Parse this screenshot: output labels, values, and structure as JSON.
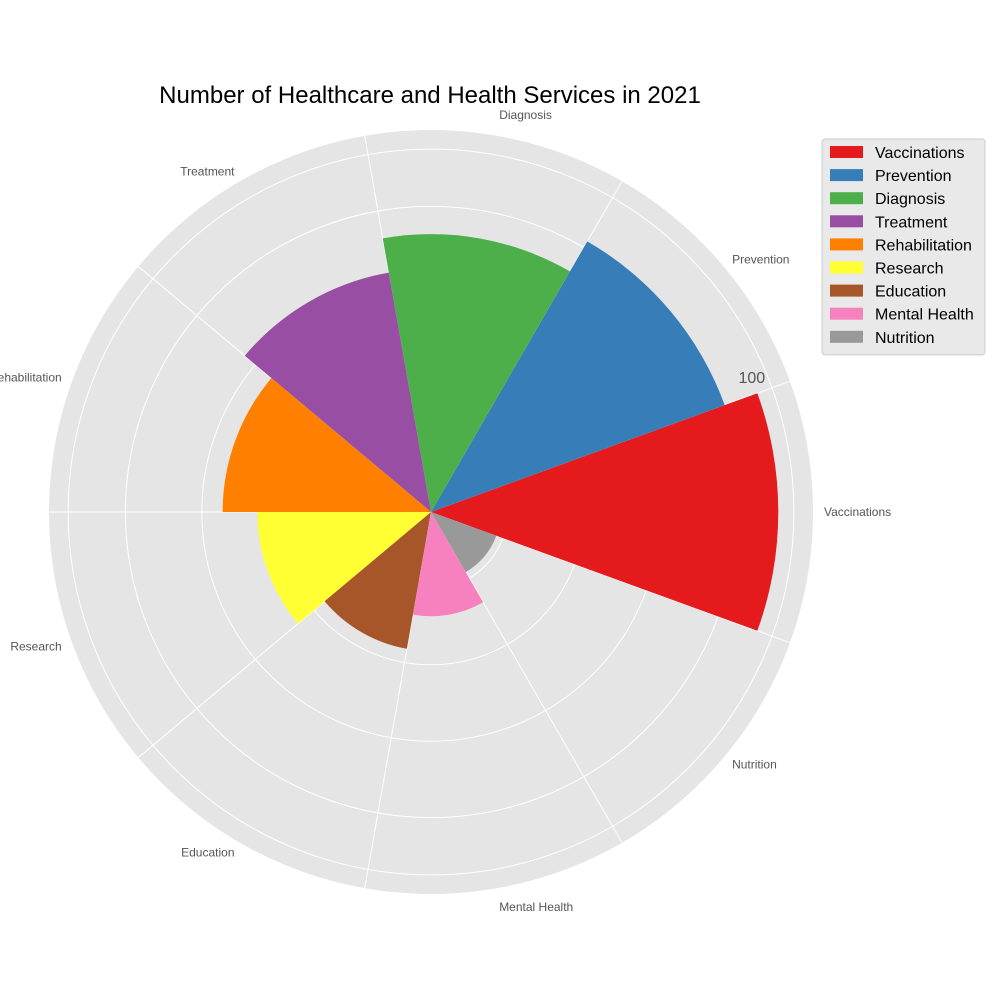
{
  "chart_data": {
    "type": "bar",
    "subtype": "polar",
    "title": "Number of Healthcare and Health Services in 2021",
    "categories": [
      "Vaccinations",
      "Prevention",
      "Diagnosis",
      "Treatment",
      "Rehabilitation",
      "Research",
      "Education",
      "Mental Health",
      "Nutrition"
    ],
    "values": [
      100,
      90,
      80,
      70,
      60,
      50,
      40,
      30,
      20
    ],
    "colors": [
      "#e41a1c",
      "#377eb8",
      "#4daf4a",
      "#984ea3",
      "#ff7f00",
      "#ffff33",
      "#a65628",
      "#f781bf",
      "#999999"
    ],
    "radial_ticks": [
      100
    ],
    "radial_max": 110,
    "grid": true,
    "legend": {
      "placement": "top-right",
      "entries": [
        "Vaccinations",
        "Prevention",
        "Diagnosis",
        "Treatment",
        "Rehabilitation",
        "Research",
        "Education",
        "Mental Health",
        "Nutrition"
      ]
    },
    "background_color": "#e5e5e5",
    "grid_color": "#ffffff"
  }
}
